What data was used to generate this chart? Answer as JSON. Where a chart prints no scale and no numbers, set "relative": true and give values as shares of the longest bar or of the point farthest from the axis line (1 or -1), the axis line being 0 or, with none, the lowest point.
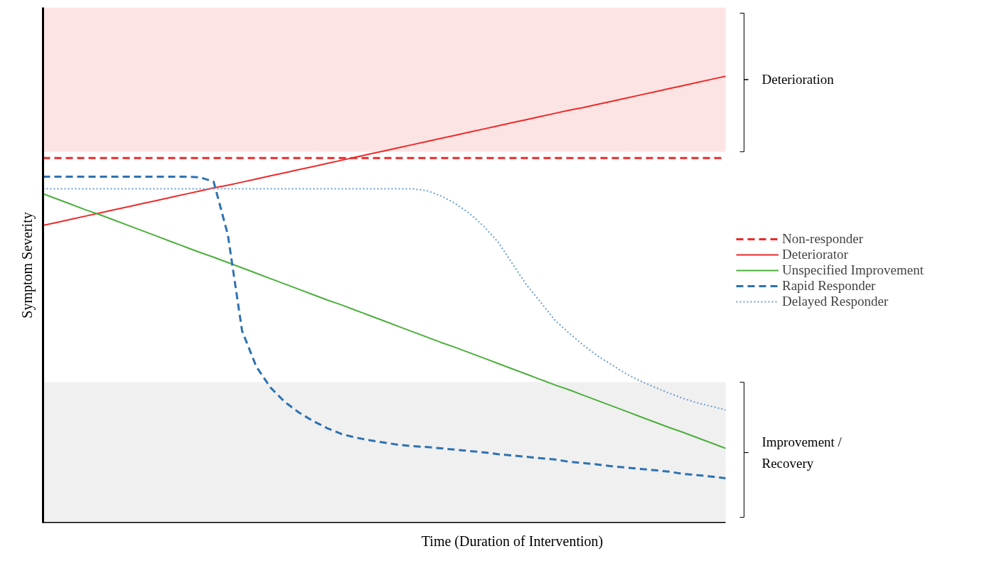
{
  "chart_data": {
    "type": "line",
    "relative": true,
    "xlabel": "Time (Duration of Intervention)",
    "ylabel": "Symptom Severity",
    "legend": "right",
    "categories": [
      null,
      null,
      null,
      null,
      null,
      null,
      null,
      null,
      null,
      null,
      null,
      null,
      null,
      null,
      null,
      null,
      null,
      null,
      null,
      null,
      null,
      null,
      null,
      null,
      null,
      null,
      null,
      null,
      null,
      null,
      null,
      null,
      null,
      null,
      null,
      null,
      null,
      null,
      null,
      null,
      null,
      null,
      null,
      null,
      null,
      null,
      null,
      null,
      null
    ],
    "series": [
      {
        "name": "Non-responder",
        "color": "#ee2a2a",
        "line_style": "dashed",
        "values": [
          0.817,
          0.817,
          0.817,
          0.817,
          0.817,
          0.817,
          0.817,
          0.817,
          0.817,
          0.817,
          0.817,
          0.817,
          0.817,
          0.817,
          0.817,
          0.817,
          0.817,
          0.817,
          0.817,
          0.817,
          0.817,
          0.817,
          0.817,
          0.817,
          0.817,
          0.817,
          0.817,
          0.817,
          0.817,
          0.817,
          0.817,
          0.817,
          0.817,
          0.817,
          0.817,
          0.817,
          0.817,
          0.817,
          0.817,
          0.817,
          0.817,
          0.817,
          0.817,
          0.817,
          0.817,
          0.817,
          0.817,
          0.817,
          0.817
        ]
      },
      {
        "name": "Deteriorator",
        "color": "#ee2a2a",
        "line_style": "solid",
        "values": [
          0.666,
          0.673,
          0.68,
          0.687,
          0.694,
          0.701,
          0.708,
          0.715,
          0.722,
          0.729,
          0.736,
          0.743,
          0.75,
          0.756,
          0.763,
          0.77,
          0.777,
          0.784,
          0.791,
          0.798,
          0.805,
          0.812,
          0.819,
          0.826,
          0.833,
          0.84,
          0.847,
          0.854,
          0.861,
          0.868,
          0.875,
          0.882,
          0.889,
          0.896,
          0.903,
          0.91,
          0.917,
          0.924,
          0.93,
          0.937,
          0.944,
          0.951,
          0.958,
          0.965,
          0.972,
          0.979,
          0.986,
          0.993,
          1.0
        ]
      },
      {
        "name": "Unspecified Improvement",
        "color": "#4caf3c",
        "line_style": "solid",
        "values": [
          0.737,
          0.725,
          0.713,
          0.701,
          0.69,
          0.678,
          0.666,
          0.654,
          0.642,
          0.63,
          0.618,
          0.606,
          0.595,
          0.583,
          0.571,
          0.559,
          0.547,
          0.535,
          0.523,
          0.511,
          0.499,
          0.488,
          0.476,
          0.464,
          0.452,
          0.44,
          0.428,
          0.416,
          0.404,
          0.393,
          0.381,
          0.369,
          0.357,
          0.345,
          0.333,
          0.321,
          0.309,
          0.298,
          0.286,
          0.274,
          0.262,
          0.25,
          0.238,
          0.226,
          0.214,
          0.203,
          0.191,
          0.179,
          0.167
        ]
      },
      {
        "name": "Rapid Responder",
        "color": "#2e72b0",
        "line_style": "dashed",
        "values": [
          0.775,
          0.775,
          0.775,
          0.775,
          0.775,
          0.775,
          0.775,
          0.775,
          0.775,
          0.775,
          0.775,
          0.774,
          0.764,
          0.645,
          0.43,
          0.35,
          0.303,
          0.271,
          0.247,
          0.228,
          0.212,
          0.199,
          0.191,
          0.185,
          0.18,
          0.175,
          0.172,
          0.17,
          0.167,
          0.164,
          0.161,
          0.158,
          0.154,
          0.151,
          0.148,
          0.145,
          0.142,
          0.137,
          0.134,
          0.131,
          0.127,
          0.124,
          0.121,
          0.118,
          0.115,
          0.11,
          0.107,
          0.104,
          0.1
        ]
      },
      {
        "name": "Delayed Responder",
        "color": "#6a9fd4",
        "line_style": "dotted",
        "values": [
          0.748,
          0.748,
          0.748,
          0.748,
          0.748,
          0.748,
          0.748,
          0.748,
          0.748,
          0.748,
          0.748,
          0.748,
          0.748,
          0.748,
          0.748,
          0.748,
          0.748,
          0.748,
          0.748,
          0.748,
          0.748,
          0.748,
          0.748,
          0.748,
          0.748,
          0.748,
          0.748,
          0.744,
          0.732,
          0.715,
          0.693,
          0.664,
          0.629,
          0.581,
          0.533,
          0.494,
          0.454,
          0.425,
          0.398,
          0.374,
          0.354,
          0.334,
          0.318,
          0.304,
          0.291,
          0.279,
          0.269,
          0.261,
          0.253
        ]
      }
    ],
    "bands": [
      {
        "axis": "y",
        "from": 0.831,
        "to": 1.154,
        "label": "Deterioration",
        "color": "#fde4e4"
      },
      {
        "axis": "y",
        "from": 0,
        "to": 0.315,
        "label": "Improvement /\nRecovery",
        "color": "#f0f0f0"
      }
    ]
  }
}
